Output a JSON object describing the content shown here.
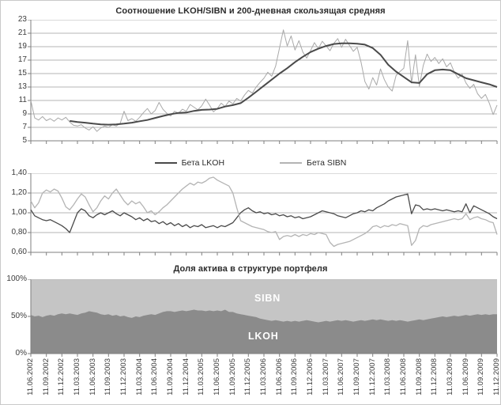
{
  "chart_data": [
    {
      "type": "line",
      "title": "Соотношение LKOH/SIBN и 200-дневная скользящая средняя",
      "ylim": [
        5,
        23
      ],
      "y_ticks": [
        "23",
        "21",
        "19",
        "17",
        "15",
        "13",
        "11",
        "9",
        "7",
        "5"
      ],
      "y_tick_values": [
        23,
        21,
        19,
        17,
        15,
        13,
        11,
        9,
        7,
        5
      ],
      "x_range_quarters": [
        0,
        30
      ],
      "grid": true,
      "series": [
        {
          "name": "LKOH/SIBN",
          "color": "#a9a9a9",
          "width": 1,
          "x_start": 0,
          "x_step": 0.25,
          "values": [
            11.0,
            8.4,
            8.1,
            8.6,
            8.0,
            8.3,
            7.9,
            8.4,
            8.1,
            8.5,
            7.8,
            7.3,
            7.2,
            7.4,
            6.9,
            6.6,
            7.1,
            6.4,
            6.9,
            7.2,
            7.0,
            7.4,
            7.2,
            7.6,
            9.4,
            8.0,
            8.3,
            7.9,
            8.5,
            9.2,
            9.8,
            9.0,
            9.5,
            10.7,
            9.7,
            9.1,
            8.7,
            9.4,
            9.1,
            9.7,
            9.4,
            10.4,
            10.0,
            9.6,
            10.2,
            11.2,
            10.3,
            9.3,
            9.8,
            10.6,
            10.1,
            10.9,
            10.5,
            11.3,
            10.9,
            11.8,
            12.5,
            12.1,
            13.0,
            13.7,
            14.3,
            15.2,
            14.6,
            16.1,
            18.8,
            21.5,
            19.1,
            20.6,
            18.5,
            19.9,
            18.2,
            17.3,
            18.4,
            19.6,
            18.7,
            19.8,
            19.1,
            18.4,
            19.5,
            20.2,
            18.9,
            20.1,
            19.2,
            18.3,
            18.9,
            16.7,
            13.8,
            12.7,
            14.4,
            13.3,
            15.7,
            14.1,
            13.0,
            12.4,
            14.7,
            15.3,
            15.8,
            19.9,
            13.6,
            17.8,
            13.1,
            16.2,
            17.9,
            16.8,
            17.4,
            16.5,
            17.2,
            16.0,
            16.6,
            15.2,
            14.3,
            14.9,
            13.6,
            12.8,
            13.4,
            12.0,
            11.3,
            11.9,
            10.6,
            8.9,
            10.3
          ]
        },
        {
          "name": "200-дневная скользящая средняя",
          "color": "#4a4a4a",
          "width": 2,
          "x_start": 2.5,
          "x_step": 0.5,
          "values": [
            7.95,
            7.8,
            7.7,
            7.55,
            7.45,
            7.4,
            7.45,
            7.55,
            7.7,
            7.9,
            8.1,
            8.4,
            8.7,
            8.95,
            9.15,
            9.2,
            9.45,
            9.6,
            9.65,
            9.75,
            10.1,
            10.3,
            10.6,
            11.4,
            12.3,
            13.2,
            14.1,
            15.0,
            15.8,
            16.7,
            17.5,
            18.2,
            18.7,
            19.1,
            19.4,
            19.5,
            19.5,
            19.45,
            19.3,
            18.8,
            17.8,
            16.3,
            15.3,
            14.5,
            13.7,
            13.6,
            14.9,
            15.5,
            15.6,
            15.5,
            14.9,
            14.3,
            14.0,
            13.7,
            13.4,
            13.0
          ]
        }
      ]
    },
    {
      "type": "line",
      "title": "",
      "legend": [
        "Бета LKOH",
        "Бета SIBN"
      ],
      "ylim": [
        0.6,
        1.4
      ],
      "y_ticks": [
        "1,40",
        "1,20",
        "1,00",
        "0,80",
        "0,60"
      ],
      "y_tick_values": [
        1.4,
        1.2,
        1.0,
        0.8,
        0.6
      ],
      "x_range_quarters": [
        0,
        30
      ],
      "grid": true,
      "series": [
        {
          "name": "Бета LKOH",
          "color": "#4a4a4a",
          "width": 1.3,
          "x_start": 0,
          "x_step": 0.25,
          "values": [
            1.03,
            0.97,
            0.95,
            0.93,
            0.92,
            0.93,
            0.91,
            0.89,
            0.87,
            0.84,
            0.8,
            0.9,
            1.0,
            1.04,
            1.02,
            0.97,
            0.95,
            0.98,
            1.0,
            0.98,
            1.0,
            1.02,
            0.99,
            0.97,
            1.0,
            0.98,
            0.96,
            0.93,
            0.95,
            0.92,
            0.94,
            0.91,
            0.92,
            0.89,
            0.91,
            0.88,
            0.9,
            0.87,
            0.89,
            0.86,
            0.88,
            0.85,
            0.87,
            0.86,
            0.88,
            0.85,
            0.86,
            0.87,
            0.85,
            0.87,
            0.86,
            0.88,
            0.9,
            0.95,
            1.0,
            1.03,
            1.05,
            1.02,
            1.0,
            1.01,
            0.99,
            1.0,
            0.98,
            0.99,
            0.97,
            0.98,
            0.96,
            0.97,
            0.95,
            0.96,
            0.94,
            0.95,
            0.96,
            0.98,
            1.0,
            1.02,
            1.01,
            1.0,
            0.99,
            0.97,
            0.96,
            0.95,
            0.97,
            0.99,
            1.0,
            1.02,
            1.01,
            1.03,
            1.02,
            1.05,
            1.07,
            1.09,
            1.12,
            1.14,
            1.16,
            1.17,
            1.18,
            1.19,
            0.99,
            1.08,
            1.07,
            1.03,
            1.04,
            1.03,
            1.04,
            1.03,
            1.02,
            1.03,
            1.02,
            1.01,
            1.02,
            1.01,
            1.09,
            1.0,
            1.07,
            1.05,
            1.03,
            1.01,
            0.99,
            0.96,
            0.94
          ]
        },
        {
          "name": "Бета SIBN",
          "color": "#b4b4b4",
          "width": 1.3,
          "x_start": 0,
          "x_step": 0.25,
          "values": [
            1.12,
            1.05,
            1.1,
            1.2,
            1.23,
            1.21,
            1.24,
            1.22,
            1.15,
            1.06,
            1.03,
            1.08,
            1.14,
            1.19,
            1.16,
            1.08,
            1.01,
            1.05,
            1.12,
            1.17,
            1.14,
            1.2,
            1.24,
            1.18,
            1.12,
            1.08,
            1.12,
            1.09,
            1.11,
            1.06,
            1.0,
            1.02,
            0.98,
            1.01,
            1.05,
            1.08,
            1.12,
            1.16,
            1.2,
            1.24,
            1.27,
            1.3,
            1.28,
            1.31,
            1.3,
            1.32,
            1.35,
            1.36,
            1.33,
            1.31,
            1.29,
            1.27,
            1.2,
            1.05,
            0.92,
            0.9,
            0.88,
            0.86,
            0.85,
            0.84,
            0.83,
            0.81,
            0.8,
            0.81,
            0.73,
            0.76,
            0.77,
            0.76,
            0.78,
            0.76,
            0.78,
            0.77,
            0.79,
            0.78,
            0.8,
            0.79,
            0.78,
            0.7,
            0.66,
            0.68,
            0.69,
            0.7,
            0.71,
            0.73,
            0.75,
            0.77,
            0.79,
            0.82,
            0.86,
            0.87,
            0.85,
            0.87,
            0.86,
            0.88,
            0.87,
            0.89,
            0.88,
            0.87,
            0.67,
            0.72,
            0.84,
            0.87,
            0.86,
            0.88,
            0.89,
            0.9,
            0.91,
            0.92,
            0.93,
            0.94,
            0.93,
            0.94,
            0.99,
            0.93,
            0.95,
            0.96,
            0.94,
            0.93,
            0.91,
            0.9,
            0.78
          ]
        }
      ]
    },
    {
      "type": "area",
      "title": "Доля актива в структуре портфеля",
      "ylim": [
        0,
        100
      ],
      "y_ticks": [
        "100%",
        "50%",
        "0%"
      ],
      "y_tick_values": [
        100,
        50,
        0
      ],
      "x_range_quarters": [
        0,
        30
      ],
      "stacked": true,
      "series_labels": {
        "top": "SIBN",
        "bottom": "LKOH"
      },
      "series": [
        {
          "name": "LKOH",
          "color": "#8b8b8b",
          "x_start": 0,
          "x_step": 0.25,
          "values": [
            52,
            50,
            51,
            49,
            51,
            52,
            51,
            53,
            54,
            53,
            54,
            53,
            52,
            54,
            55,
            57,
            56,
            55,
            53,
            52,
            53,
            51,
            52,
            50,
            51,
            49,
            48,
            50,
            49,
            51,
            52,
            53,
            52,
            54,
            56,
            57,
            57,
            56,
            57,
            58,
            57,
            58,
            59,
            58,
            58,
            57,
            58,
            57,
            58,
            57,
            59,
            56,
            56,
            54,
            53,
            52,
            51,
            50,
            49,
            47,
            46,
            45,
            44,
            45,
            44,
            43,
            44,
            43,
            44,
            43,
            44,
            45,
            44,
            43,
            42,
            43,
            44,
            43,
            44,
            45,
            44,
            45,
            44,
            43,
            44,
            45,
            44,
            45,
            46,
            45,
            46,
            45,
            44,
            45,
            44,
            45,
            44,
            43,
            44,
            45,
            46,
            45,
            46,
            47,
            48,
            49,
            50,
            49,
            50,
            51,
            50,
            51,
            52,
            51,
            52,
            53,
            52,
            53,
            52,
            53,
            53
          ]
        },
        {
          "name": "SIBN",
          "color": "#c5c5c5",
          "note": "remainder to 100%"
        }
      ],
      "x_labels": [
        "11.06.2002",
        "11.09.2002",
        "11.12.2002",
        "11.03.2003",
        "11.06.2003",
        "11.09.2003",
        "11.12.2003",
        "11.03.2004",
        "11.06.2004",
        "11.09.2004",
        "11.12.2004",
        "11.03.2005",
        "11.06.2005",
        "11.09.2005",
        "11.12.2005",
        "11.03.2006",
        "11.06.2006",
        "11.09.2006",
        "11.12.2006",
        "11.03.2007",
        "11.06.2007",
        "11.09.2007",
        "11.12.2007",
        "11.03.2008",
        "11.06.2008",
        "11.09.2008",
        "11.12.2008",
        "11.03.2009",
        "11.06.2009",
        "11.09.2009",
        "11.12.2009"
      ]
    }
  ],
  "colors": {
    "grid": "#b6b6b6",
    "axis": "#7f7f7f",
    "text": "#3c3c3c"
  }
}
